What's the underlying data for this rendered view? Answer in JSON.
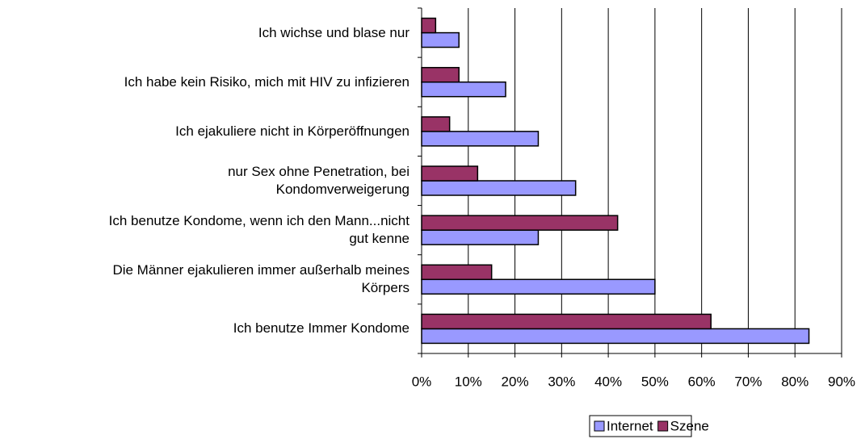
{
  "chart_data": {
    "type": "bar",
    "orientation": "horizontal",
    "categories": [
      "Ich wichse und blase nur",
      "Ich habe kein Risiko, mich mit HIV zu infizieren",
      "Ich ejakuliere nicht in Körperöffnungen",
      "nur Sex ohne Penetration, bei\nKondomverweigerung",
      "Ich benutze Kondome, wenn ich den Mann...nicht\ngut kenne",
      "Die Männer ejakulieren immer außerhalb meines\nKörpers",
      "Ich benutze Immer Kondome"
    ],
    "series": [
      {
        "name": "Internet",
        "color": "#9999ff",
        "values": [
          8,
          18,
          25,
          33,
          25,
          50,
          83
        ]
      },
      {
        "name": "Szene",
        "color": "#993366",
        "values": [
          3,
          8,
          6,
          12,
          42,
          15,
          62
        ]
      }
    ],
    "xlim": [
      0,
      90
    ],
    "xticks": [
      {
        "value": 0,
        "label": "0%"
      },
      {
        "value": 10,
        "label": "10%"
      },
      {
        "value": 20,
        "label": "20%"
      },
      {
        "value": 30,
        "label": "30%"
      },
      {
        "value": 40,
        "label": "40%"
      },
      {
        "value": 50,
        "label": "50%"
      },
      {
        "value": 60,
        "label": "60%"
      },
      {
        "value": 70,
        "label": "70%"
      },
      {
        "value": 80,
        "label": "80%"
      },
      {
        "value": 90,
        "label": "90%"
      }
    ],
    "grid": true,
    "legend": "bottom"
  }
}
